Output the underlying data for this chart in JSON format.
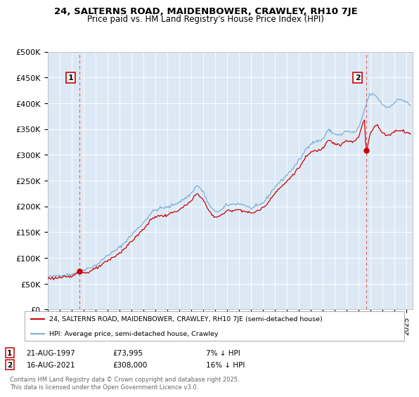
{
  "title": "24, SALTERNS ROAD, MAIDENBOWER, CRAWLEY, RH10 7JE",
  "subtitle": "Price paid vs. HM Land Registry's House Price Index (HPI)",
  "ylabel_ticks": [
    "£0",
    "£50K",
    "£100K",
    "£150K",
    "£200K",
    "£250K",
    "£300K",
    "£350K",
    "£400K",
    "£450K",
    "£500K"
  ],
  "ytick_values": [
    0,
    50000,
    100000,
    150000,
    200000,
    250000,
    300000,
    350000,
    400000,
    450000,
    500000
  ],
  "ylim": [
    0,
    500000
  ],
  "xlim_start": 1995.0,
  "xlim_end": 2025.5,
  "sale1": {
    "date_str": "21-AUG-1997",
    "price": 73995,
    "year": 1997.64,
    "label": "1",
    "note": "7% ↓ HPI"
  },
  "sale2": {
    "date_str": "16-AUG-2021",
    "price": 308000,
    "year": 2021.62,
    "label": "2",
    "note": "16% ↓ HPI"
  },
  "legend_line1": "24, SALTERNS ROAD, MAIDENBOWER, CRAWLEY, RH10 7JE (semi-detached house)",
  "legend_line2": "HPI: Average price, semi-detached house, Crawley",
  "footer": "Contains HM Land Registry data © Crown copyright and database right 2025.\nThis data is licensed under the Open Government Licence v3.0.",
  "property_color": "#cc0000",
  "hpi_color": "#7aafd4",
  "background_color": "#dce9f5",
  "plot_bg": "#dce9f5",
  "marker_box_color": "#cc0000",
  "dashed_line_color": "#e06060"
}
